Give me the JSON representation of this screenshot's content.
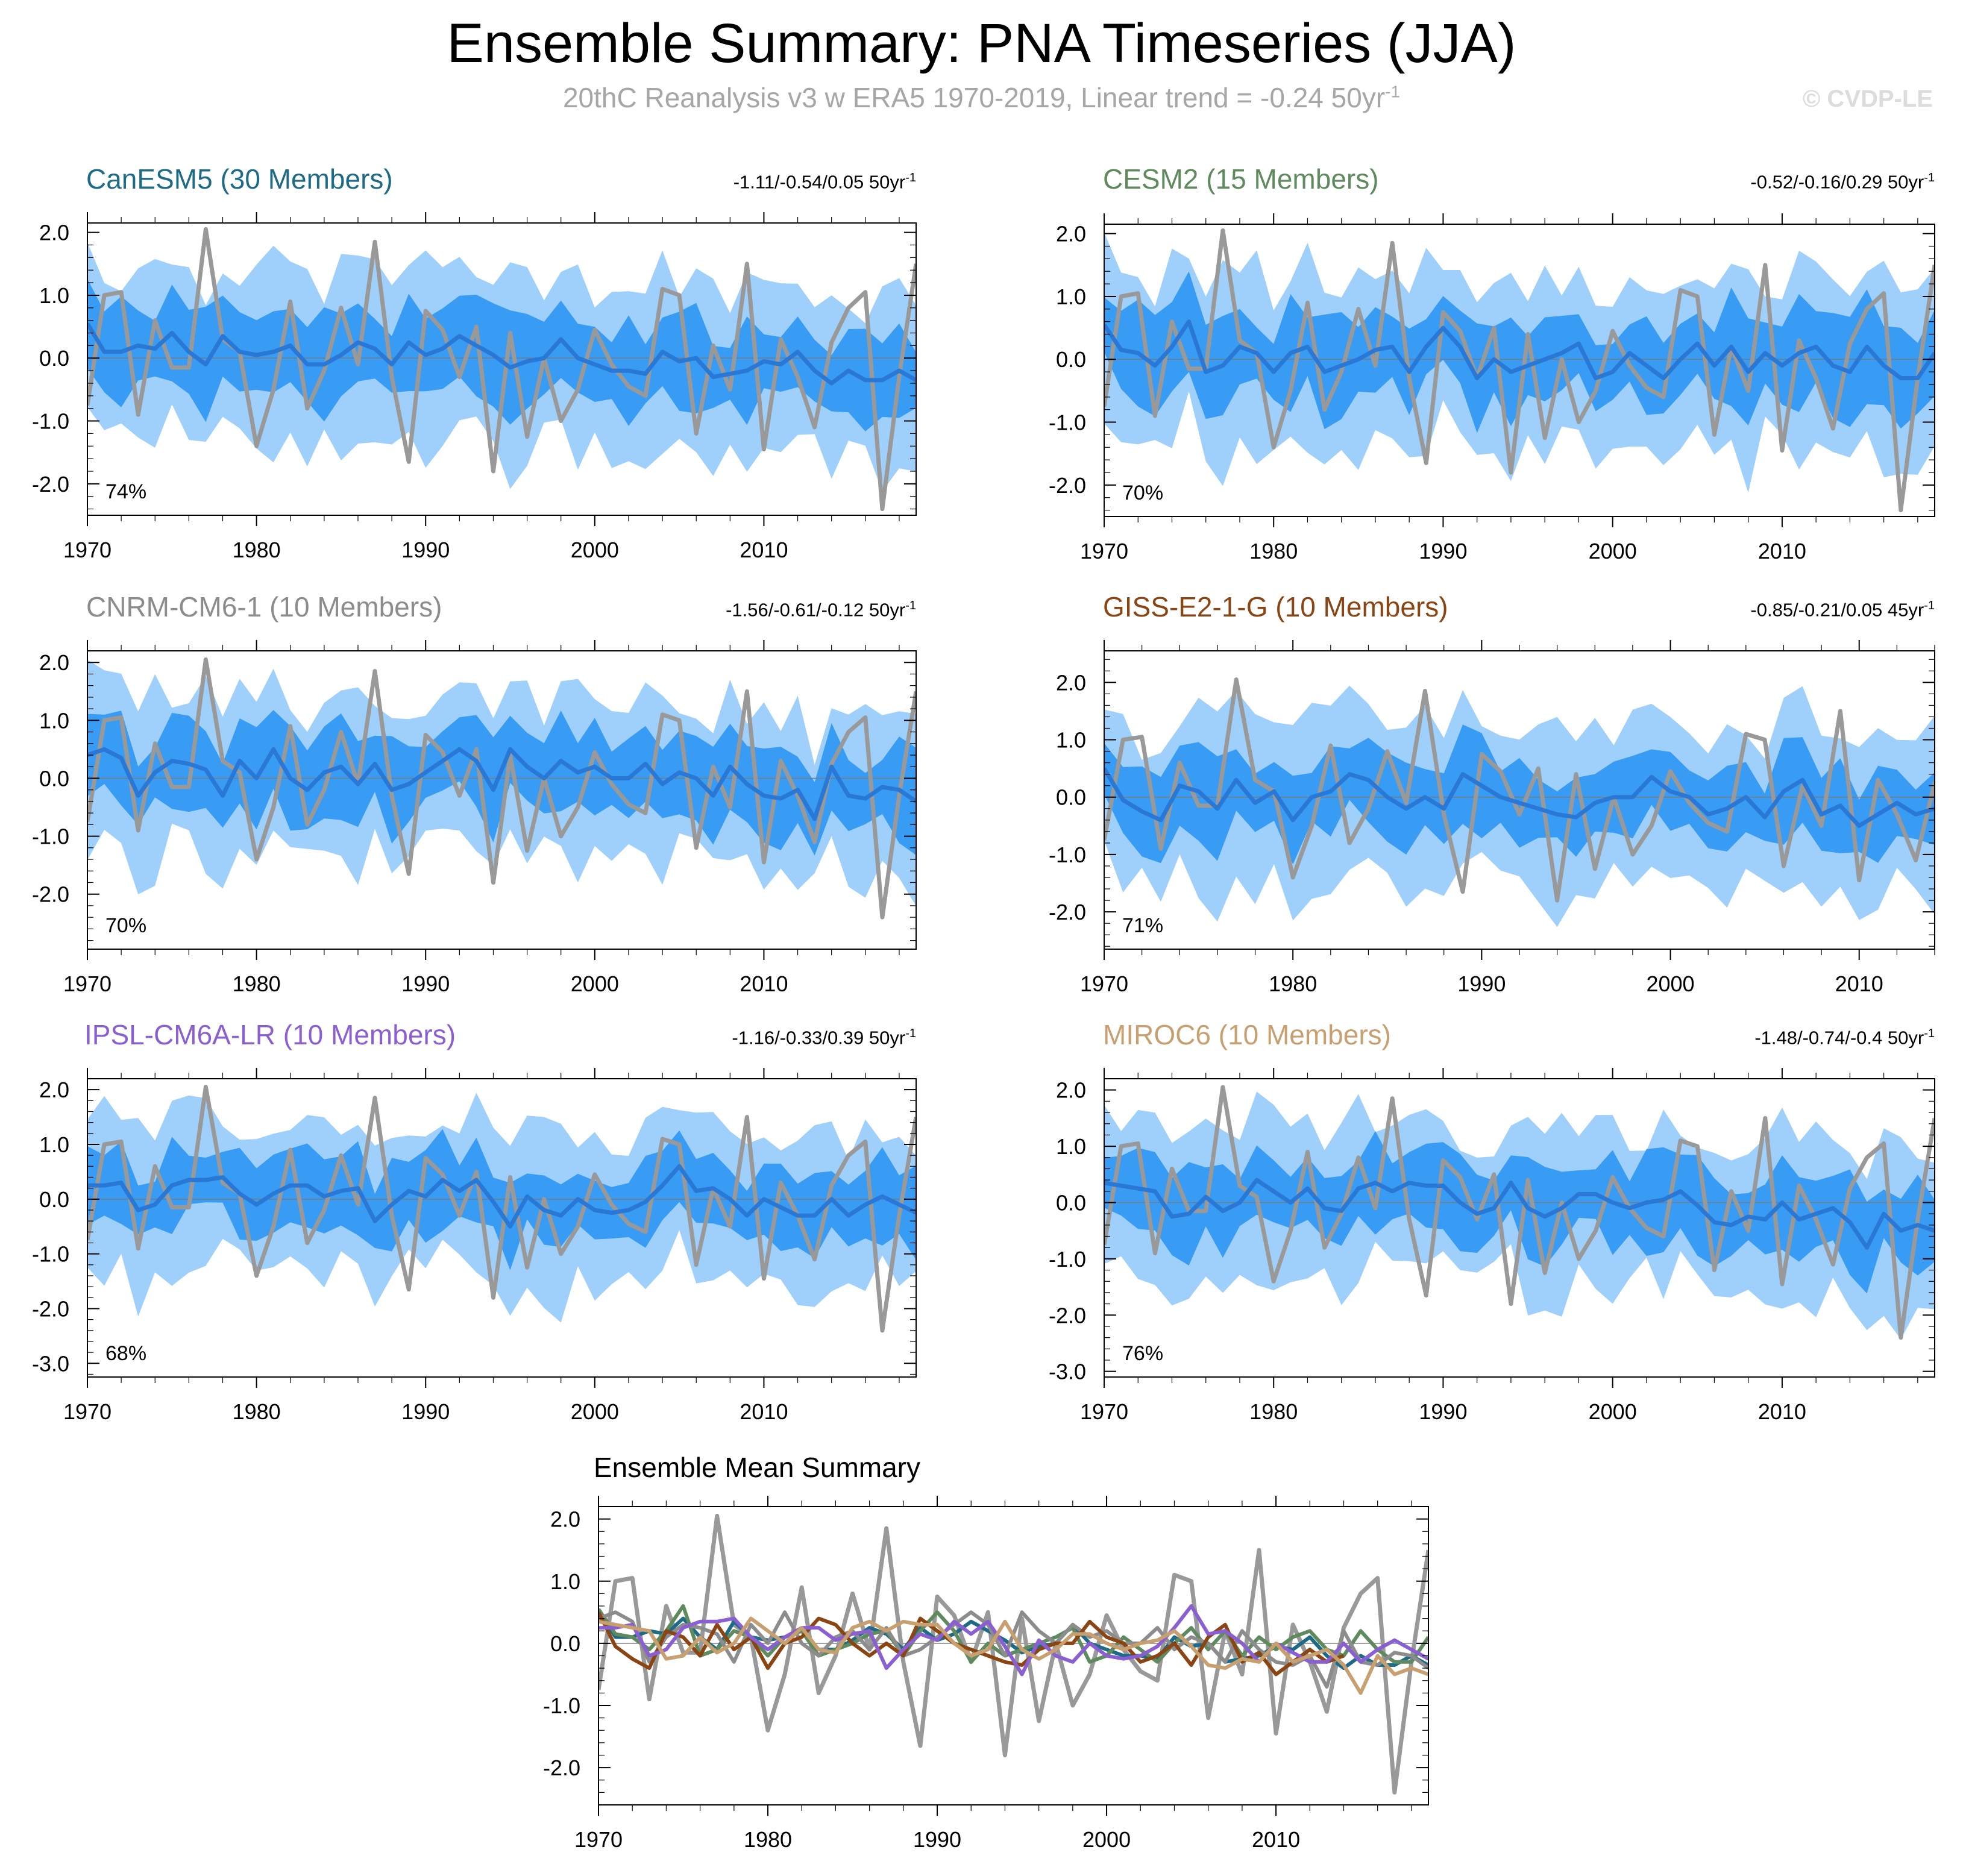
{
  "header": {
    "title": "Ensemble Summary: PNA Timeseries (JJA)",
    "subtitle": "20thC Reanalysis v3 w ERA5 1970-2019, Linear trend = -0.24 50yr",
    "subtitle_sup": "-1",
    "watermark": "© CVDP-LE"
  },
  "colors": {
    "band_outer": "#9fd0fb",
    "band_inner": "#389cf5",
    "ens_mean": "#2a78d6",
    "obs": "#999999"
  },
  "chart_data": [
    {
      "id": "canesm5",
      "type": "line",
      "title": "CanESM5 (30 Members)",
      "title_color": "#1d6b87",
      "trend": "-1.11/-0.54/0.05 50yr",
      "trend_sup": "-1",
      "percent": "74%",
      "xlim": [
        1970,
        2019
      ],
      "ylim": [
        -2.5,
        2.15
      ],
      "yticks": [
        -2,
        -1,
        0,
        1,
        2
      ],
      "ytick_labels": [
        "-2.0",
        "-1.0",
        "0.0",
        "1.0",
        "2.0"
      ],
      "xticks": [
        1970,
        1980,
        1990,
        2000,
        2010
      ],
      "xtick_labels": [
        "1970",
        "1980",
        "1990",
        "2000",
        "2010"
      ],
      "start": 1970,
      "mean": [
        0.55,
        0.1,
        0.1,
        0.2,
        0.15,
        0.4,
        0.1,
        -0.1,
        0.35,
        0.1,
        0.05,
        0.1,
        0.2,
        -0.1,
        -0.1,
        0.05,
        0.25,
        0.15,
        -0.1,
        0.25,
        0.05,
        0.15,
        0.35,
        0.2,
        0.05,
        -0.15,
        -0.05,
        0.0,
        0.3,
        0.0,
        -0.1,
        -0.2,
        -0.2,
        -0.25,
        0.1,
        -0.05,
        0.0,
        -0.3,
        -0.25,
        -0.2,
        -0.05,
        -0.1,
        0.1,
        -0.2,
        -0.4,
        -0.2,
        -0.35,
        -0.35,
        -0.2,
        -0.35
      ]
    },
    {
      "id": "cesm2",
      "type": "line",
      "title": "CESM2 (15 Members)",
      "title_color": "#5e8a5e",
      "trend": "-0.52/-0.16/0.29 50yr",
      "trend_sup": "-1",
      "percent": "70%",
      "xlim": [
        1970,
        2019
      ],
      "ylim": [
        -2.5,
        2.15
      ],
      "yticks": [
        -2,
        -1,
        0,
        1,
        2
      ],
      "ytick_labels": [
        "-2.0",
        "-1.0",
        "0.0",
        "1.0",
        "2.0"
      ],
      "xticks": [
        1970,
        1980,
        1990,
        2000,
        2010
      ],
      "xtick_labels": [
        "1970",
        "1980",
        "1990",
        "2000",
        "2010"
      ],
      "start": 1970,
      "mean": [
        0.55,
        0.15,
        0.1,
        -0.1,
        0.2,
        0.6,
        -0.2,
        -0.1,
        0.2,
        0.1,
        -0.2,
        0.1,
        0.2,
        -0.2,
        -0.1,
        0.0,
        0.15,
        0.2,
        -0.2,
        0.2,
        0.5,
        0.2,
        -0.3,
        0.0,
        -0.2,
        -0.1,
        0.0,
        0.1,
        0.25,
        -0.3,
        -0.2,
        0.1,
        -0.1,
        -0.3,
        0.0,
        0.25,
        -0.1,
        0.2,
        -0.2,
        0.1,
        -0.1,
        0.1,
        0.2,
        -0.1,
        -0.2,
        0.2,
        -0.1,
        -0.3,
        -0.3,
        0.1
      ]
    },
    {
      "id": "cnrm",
      "type": "line",
      "title": "CNRM-CM6-1 (10 Members)",
      "title_color": "#8c8c8c",
      "trend": "-1.56/-0.61/-0.12 50yr",
      "trend_sup": "-1",
      "percent": "70%",
      "xlim": [
        1970,
        2019
      ],
      "ylim": [
        -2.95,
        2.2
      ],
      "yticks": [
        -2,
        -1,
        0,
        1,
        2
      ],
      "ytick_labels": [
        "-2.0",
        "-1.0",
        "0.0",
        "1.0",
        "2.0"
      ],
      "xticks": [
        1970,
        1980,
        1990,
        2000,
        2010
      ],
      "xtick_labels": [
        "1970",
        "1980",
        "1990",
        "2000",
        "2010"
      ],
      "start": 1970,
      "mean": [
        0.4,
        0.5,
        0.35,
        -0.3,
        0.1,
        0.3,
        0.25,
        0.15,
        -0.3,
        0.3,
        0.0,
        0.5,
        0.0,
        -0.2,
        0.1,
        0.2,
        -0.1,
        0.25,
        -0.2,
        -0.1,
        0.1,
        0.3,
        0.5,
        0.3,
        -0.2,
        0.5,
        0.2,
        0.0,
        0.3,
        0.1,
        0.2,
        0.0,
        0.0,
        0.25,
        -0.1,
        0.1,
        0.0,
        -0.3,
        0.2,
        -0.1,
        -0.3,
        -0.35,
        -0.2,
        -0.7,
        0.2,
        -0.3,
        -0.35,
        -0.15,
        -0.2,
        -0.4
      ]
    },
    {
      "id": "giss",
      "type": "line",
      "title": "GISS-E2-1-G (10 Members)",
      "title_color": "#8b4513",
      "trend": "-0.85/-0.21/0.05 45yr",
      "trend_sup": "-1",
      "percent": "71%",
      "xlim": [
        1970,
        2014
      ],
      "ylim": [
        -2.65,
        2.55
      ],
      "yticks": [
        -2,
        -1,
        0,
        1,
        2
      ],
      "ytick_labels": [
        "-2.0",
        "-1.0",
        "0.0",
        "1.0",
        "2.0"
      ],
      "xticks": [
        1970,
        1980,
        1990,
        2000,
        2010
      ],
      "xtick_labels": [
        "1970",
        "1980",
        "1990",
        "2000",
        "2010"
      ],
      "start": 1970,
      "mean": [
        0.5,
        -0.05,
        -0.25,
        -0.4,
        0.2,
        0.1,
        -0.2,
        0.3,
        -0.1,
        0.1,
        -0.4,
        0.0,
        0.1,
        0.4,
        0.3,
        0.0,
        -0.2,
        0.0,
        -0.2,
        0.4,
        0.2,
        0.0,
        -0.1,
        -0.2,
        -0.3,
        -0.35,
        -0.1,
        0.0,
        0.0,
        0.35,
        0.1,
        0.0,
        -0.3,
        -0.2,
        0.0,
        -0.35,
        0.1,
        0.3,
        -0.3,
        -0.15,
        -0.5,
        -0.3,
        -0.1,
        -0.3,
        -0.2
      ]
    },
    {
      "id": "ipsl",
      "type": "line",
      "title": "IPSL-CM6A-LR (10 Members)",
      "title_color": "#8a5fd1",
      "trend": "-1.16/-0.33/0.39 50yr",
      "trend_sup": "-1",
      "percent": "68%",
      "xlim": [
        1970,
        2019
      ],
      "ylim": [
        -3.25,
        2.2
      ],
      "yticks": [
        -3,
        -2,
        -1,
        0,
        1,
        2
      ],
      "ytick_labels": [
        "-3.0",
        "-2.0",
        "-1.0",
        "0.0",
        "1.0",
        "2.0"
      ],
      "xticks": [
        1970,
        1980,
        1990,
        2000,
        2010
      ],
      "xtick_labels": [
        "1970",
        "1980",
        "1990",
        "2000",
        "2010"
      ],
      "start": 1970,
      "mean": [
        0.25,
        0.25,
        0.3,
        -0.2,
        -0.1,
        0.25,
        0.35,
        0.35,
        0.4,
        0.1,
        -0.1,
        0.1,
        0.25,
        0.25,
        0.05,
        0.15,
        0.2,
        -0.4,
        -0.1,
        0.15,
        0.05,
        0.35,
        0.15,
        0.35,
        -0.05,
        -0.5,
        0.05,
        -0.2,
        -0.3,
        0.0,
        -0.2,
        -0.25,
        -0.2,
        -0.05,
        0.25,
        0.6,
        0.15,
        0.2,
        0.0,
        -0.3,
        0.0,
        -0.15,
        -0.3,
        -0.3,
        0.0,
        -0.3,
        -0.1,
        0.05,
        -0.1,
        -0.25
      ]
    },
    {
      "id": "miroc6",
      "type": "line",
      "title": "MIROC6 (10 Members)",
      "title_color": "#c8a070",
      "trend": "-1.48/-0.74/-0.4 50yr",
      "trend_sup": "-1",
      "percent": "76%",
      "xlim": [
        1970,
        2019
      ],
      "ylim": [
        -3.1,
        2.2
      ],
      "yticks": [
        -3,
        -2,
        -1,
        0,
        1,
        2
      ],
      "ytick_labels": [
        "-3.0",
        "-2.0",
        "-1.0",
        "0.0",
        "1.0",
        "2.0"
      ],
      "xticks": [
        1970,
        1980,
        1990,
        2000,
        2010
      ],
      "xtick_labels": [
        "1970",
        "1980",
        "1990",
        "2000",
        "2010"
      ],
      "start": 1970,
      "mean": [
        0.35,
        0.3,
        0.25,
        0.2,
        -0.25,
        -0.2,
        0.1,
        -0.15,
        0.0,
        0.4,
        0.2,
        0.0,
        0.25,
        -0.1,
        -0.15,
        0.25,
        0.35,
        0.2,
        0.35,
        0.3,
        0.3,
        0.0,
        -0.2,
        -0.1,
        0.35,
        -0.1,
        -0.25,
        -0.1,
        0.15,
        0.15,
        0.0,
        -0.1,
        0.0,
        0.05,
        0.2,
        -0.05,
        -0.35,
        -0.4,
        -0.25,
        -0.3,
        0.0,
        -0.3,
        -0.2,
        -0.1,
        -0.35,
        -0.8,
        -0.2,
        -0.5,
        -0.4,
        -0.5
      ]
    },
    {
      "id": "summary",
      "type": "line",
      "title": "Ensemble Mean Summary",
      "xlim": [
        1970,
        2019
      ],
      "ylim": [
        -2.6,
        2.2
      ],
      "yticks": [
        -2,
        -1,
        0,
        1,
        2
      ],
      "ytick_labels": [
        "-2.0",
        "-1.0",
        "0.0",
        "1.0",
        "2.0"
      ],
      "xticks": [
        1970,
        1980,
        1990,
        2000,
        2010
      ],
      "xtick_labels": [
        "1970",
        "1980",
        "1990",
        "2000",
        "2010"
      ],
      "start": 1970
    }
  ],
  "observed": {
    "name": "20thC Reanalysis v3 w ERA5",
    "start": 1970,
    "values": [
      -0.75,
      1.0,
      1.05,
      -0.9,
      0.6,
      -0.15,
      -0.15,
      2.05,
      0.3,
      0.1,
      -1.4,
      -0.5,
      0.9,
      -0.8,
      -0.2,
      0.8,
      -0.1,
      1.85,
      -0.3,
      -1.65,
      0.75,
      0.45,
      -0.3,
      0.5,
      -1.8,
      0.4,
      -1.25,
      0.0,
      -1.0,
      -0.5,
      0.45,
      -0.1,
      -0.45,
      -0.6,
      1.1,
      1.0,
      -1.2,
      0.2,
      -0.5,
      1.5,
      -1.45,
      0.3,
      -0.3,
      -1.1,
      0.25,
      0.8,
      1.05,
      -2.4,
      -0.3,
      1.5
    ]
  }
}
